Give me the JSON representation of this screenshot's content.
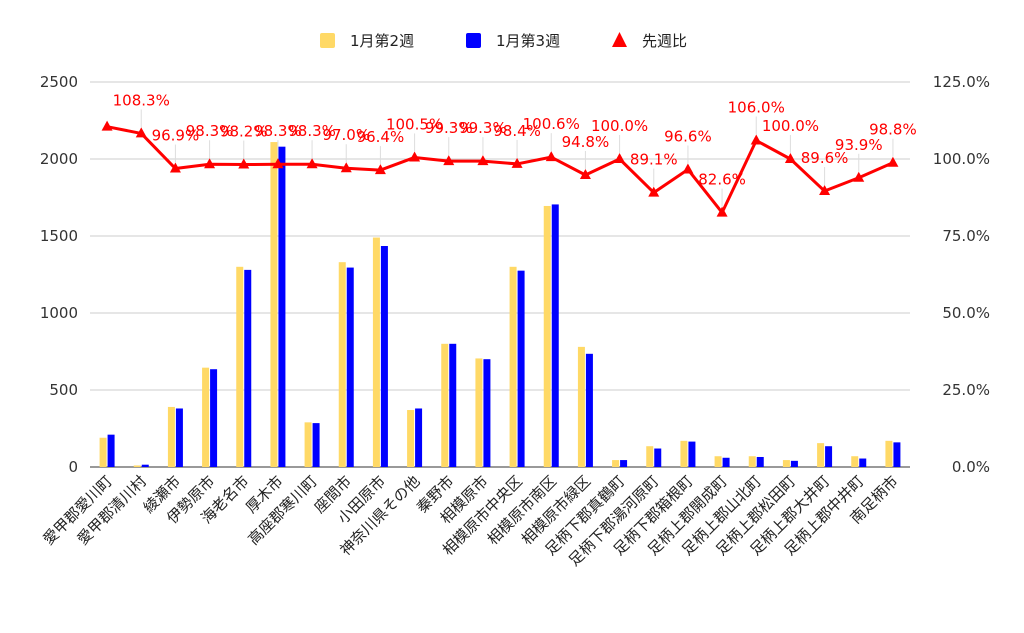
{
  "chart_data": {
    "type": "bar",
    "categories": [
      "愛甲郡愛川町",
      "愛甲郡清川村",
      "綾瀬市",
      "伊勢原市",
      "海老名市",
      "厚木市",
      "高座郡寒川町",
      "座間市",
      "小田原市",
      "神奈川県その他",
      "秦野市",
      "相模原市",
      "相模原市中央区",
      "相模原市南区",
      "相模原市緑区",
      "足柄下郡真鶴町",
      "足柄下郡湯河原町",
      "足柄下郡箱根町",
      "足柄上郡開成町",
      "足柄上郡山北町",
      "足柄上郡松田町",
      "足柄上郡大井町",
      "足柄上郡中井町",
      "南足柄市"
    ],
    "series": [
      {
        "name": "1月第2週",
        "type": "bar",
        "axis": "left",
        "color": "#ffd966",
        "values": [
          190,
          10,
          390,
          645,
          1300,
          2110,
          290,
          1330,
          1490,
          370,
          800,
          705,
          1300,
          1695,
          780,
          45,
          135,
          170,
          70,
          70,
          45,
          155,
          70,
          170
        ]
      },
      {
        "name": "1月第3週",
        "type": "bar",
        "axis": "left",
        "color": "#0000ff",
        "values": [
          210,
          15,
          380,
          635,
          1280,
          2080,
          285,
          1295,
          1435,
          380,
          800,
          700,
          1275,
          1705,
          735,
          45,
          120,
          165,
          60,
          65,
          40,
          135,
          55,
          160
        ]
      },
      {
        "name": "先週比",
        "type": "line",
        "axis": "right",
        "color": "#ff0000",
        "marker": "triangle",
        "values": [
          110.5,
          108.3,
          96.9,
          98.3,
          98.2,
          98.3,
          98.3,
          97.0,
          96.4,
          100.5,
          99.3,
          99.3,
          98.4,
          100.6,
          94.8,
          100.0,
          89.1,
          96.6,
          82.6,
          106.0,
          100.0,
          89.6,
          93.9,
          98.8
        ]
      }
    ],
    "data_labels": [
      "",
      "108.3%",
      "96.9%",
      "98.3%",
      "98.2%",
      "98.3%",
      "98.3%",
      "97.0%",
      "96.4%",
      "100.5%",
      "99.3%",
      "99.3%",
      "98.4%",
      "100.6%",
      "94.8%",
      "100.0%",
      "89.1%",
      "96.6%",
      "82.6%",
      "106.0%",
      "100.0%",
      "89.6%",
      "93.9%",
      "98.8%"
    ],
    "y_left": {
      "ticks": [
        "0",
        "500",
        "1000",
        "1500",
        "2000",
        "2500"
      ],
      "ylim": [
        0,
        2500
      ]
    },
    "y_right": {
      "ticks": [
        "0.0%",
        "25.0%",
        "50.0%",
        "75.0%",
        "100.0%",
        "125.0%"
      ],
      "ylim": [
        0,
        125
      ]
    },
    "legend": [
      "1月第2週",
      "1月第3週",
      "先週比"
    ],
    "legend_position": "top",
    "grid": true
  }
}
